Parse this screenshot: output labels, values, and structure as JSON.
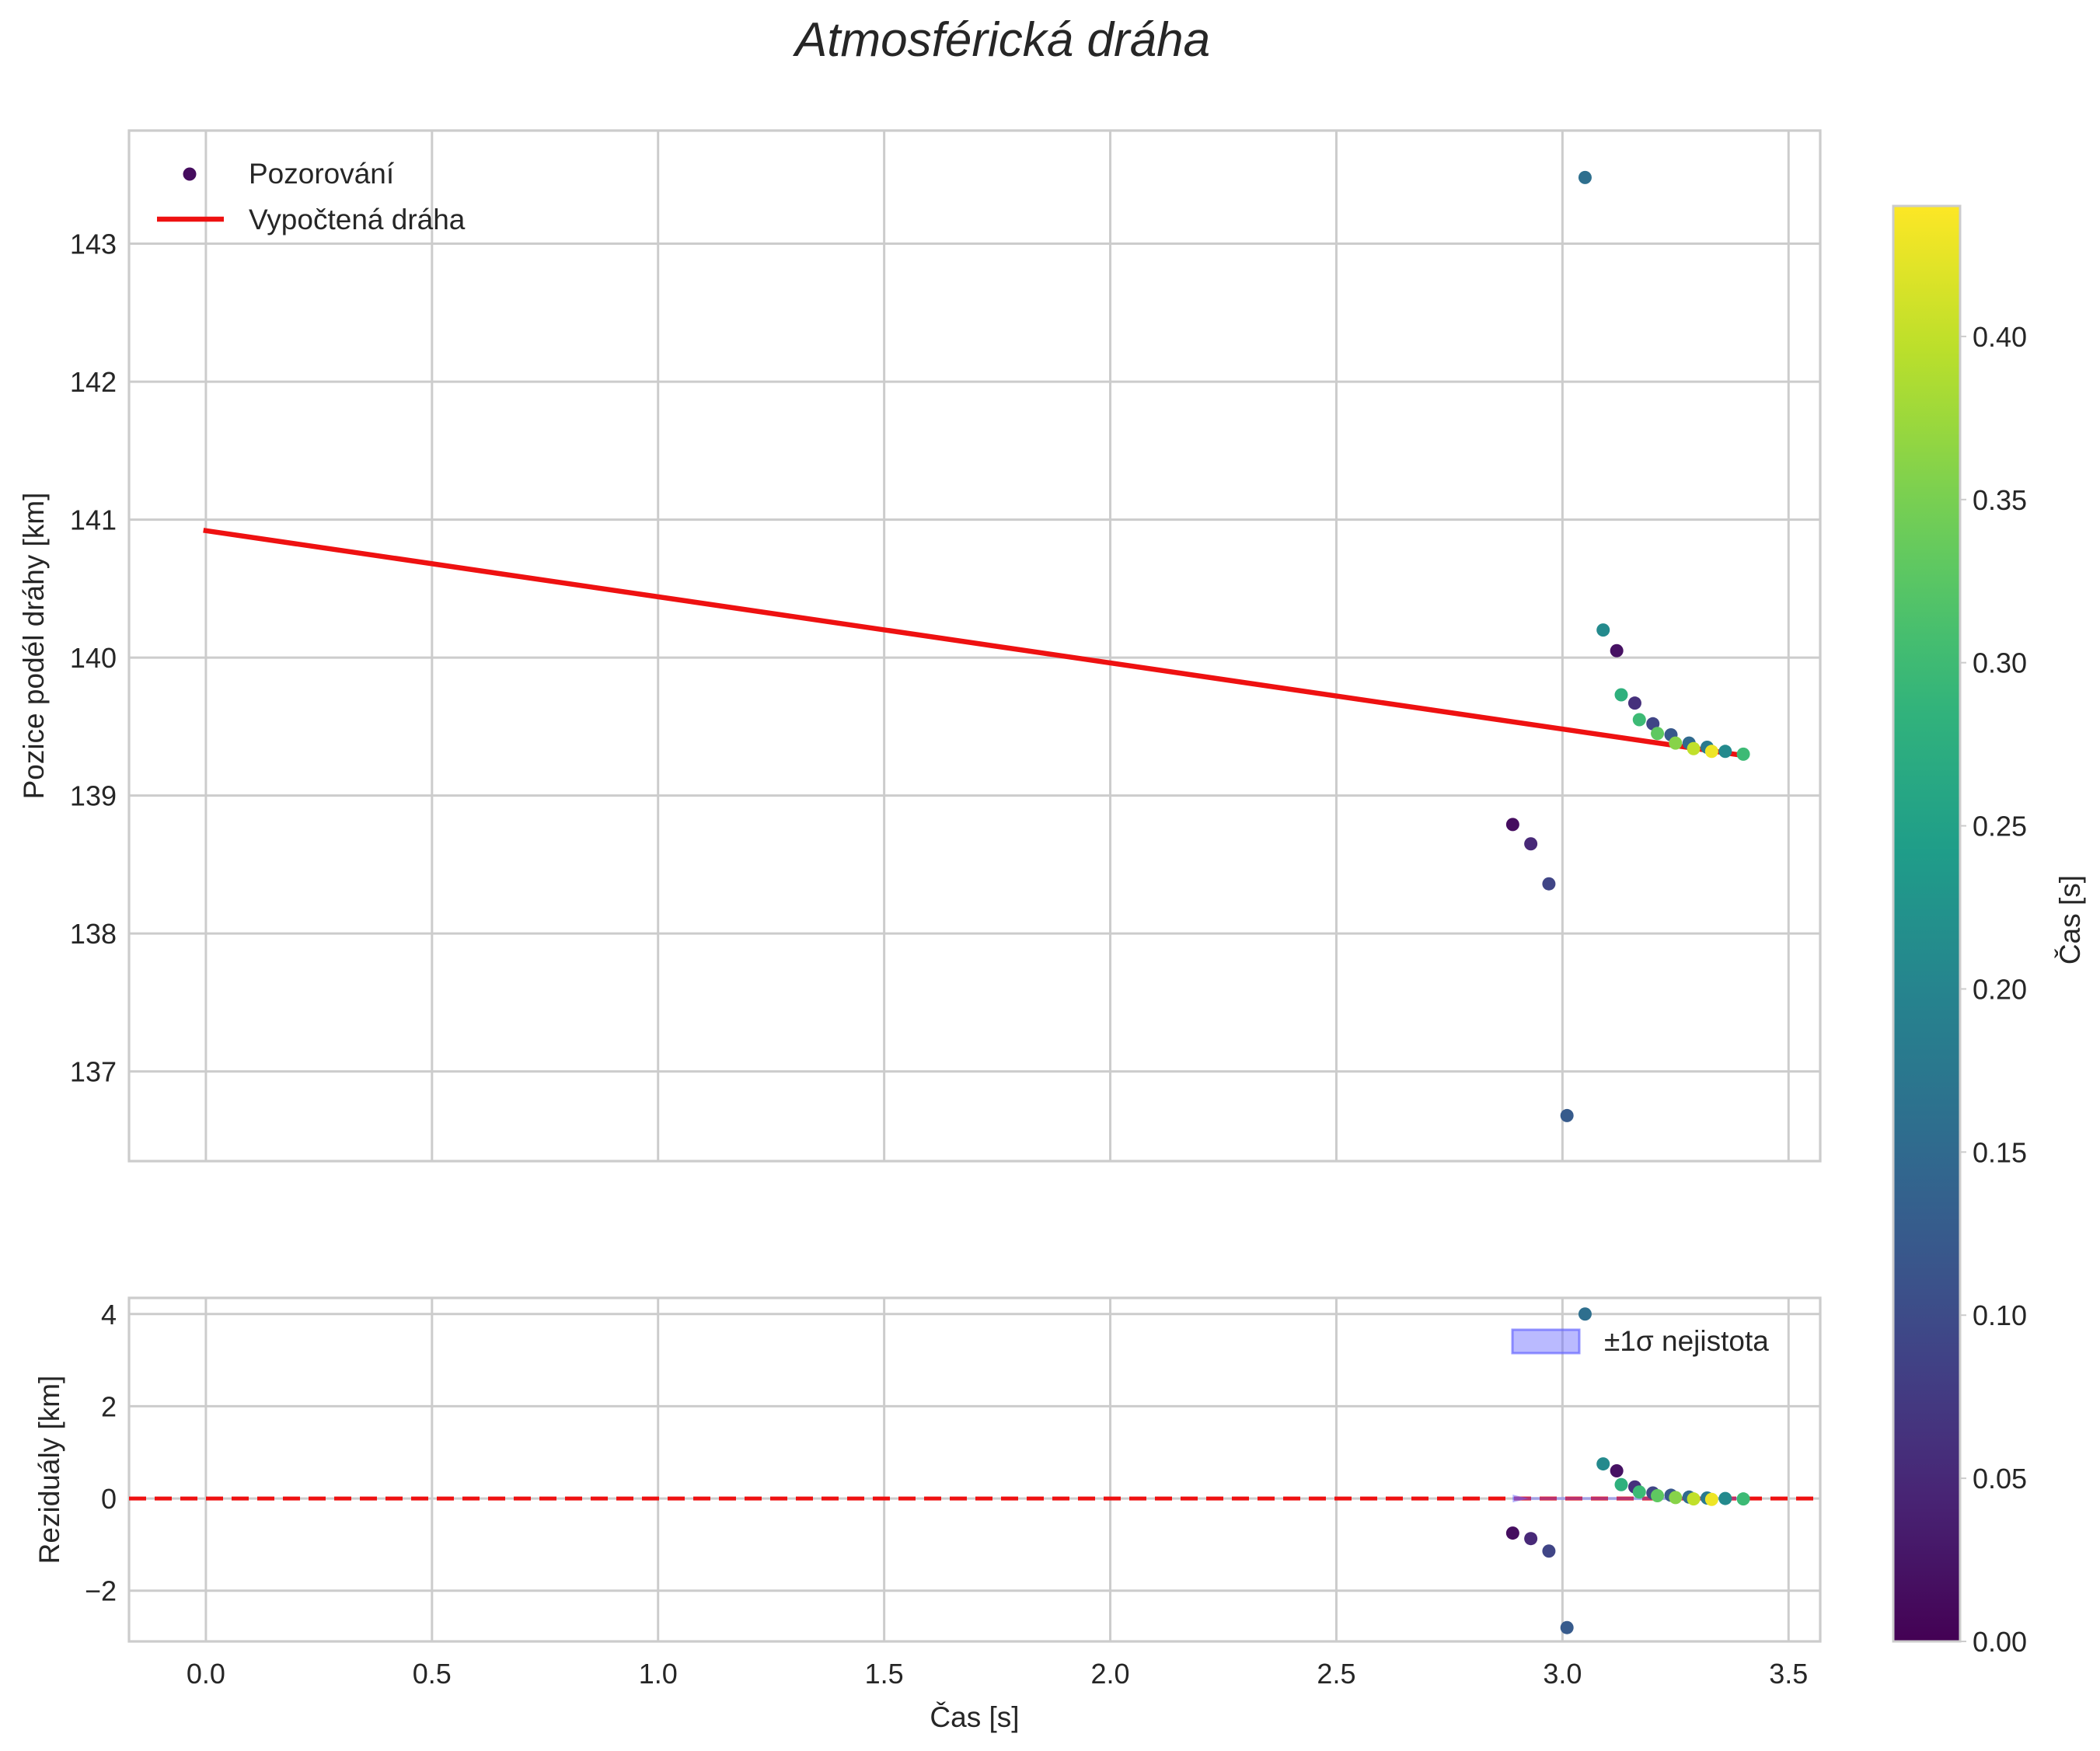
{
  "chart_data": [
    {
      "type": "scatter",
      "title": "Atmosférická dráha",
      "xlabel": "",
      "ylabel": "Pozice podél dráhy [km]",
      "xlim": [
        -0.17,
        3.57
      ],
      "ylim": [
        136.35,
        143.82
      ],
      "x_ticks": [
        0.0,
        0.5,
        1.0,
        1.5,
        2.0,
        2.5,
        3.0,
        3.5
      ],
      "y_ticks": [
        137,
        138,
        139,
        140,
        141,
        142,
        143
      ],
      "y_tick_labels": [
        "137",
        "138",
        "139",
        "140",
        "141",
        "142",
        "143"
      ],
      "grid": true,
      "legend": {
        "placement": "top-left",
        "entries": [
          {
            "label": "Pozorování",
            "kind": "marker"
          },
          {
            "label": "Vypočtená dráha",
            "kind": "line",
            "color": "#ee1111"
          }
        ]
      },
      "series": [
        {
          "name": "Pozorování",
          "kind": "scatter",
          "colormap": "viridis",
          "points": [
            {
              "x": 2.89,
              "y": 138.79,
              "c": 0.015
            },
            {
              "x": 2.93,
              "y": 138.65,
              "c": 0.05
            },
            {
              "x": 2.97,
              "y": 138.36,
              "c": 0.09
            },
            {
              "x": 3.01,
              "y": 136.68,
              "c": 0.125
            },
            {
              "x": 3.05,
              "y": 143.48,
              "c": 0.16
            },
            {
              "x": 3.09,
              "y": 140.2,
              "c": 0.21
            },
            {
              "x": 3.12,
              "y": 140.05,
              "c": 0.02
            },
            {
              "x": 3.13,
              "y": 139.73,
              "c": 0.28
            },
            {
              "x": 3.16,
              "y": 139.67,
              "c": 0.06
            },
            {
              "x": 3.17,
              "y": 139.55,
              "c": 0.3
            },
            {
              "x": 3.2,
              "y": 139.52,
              "c": 0.09
            },
            {
              "x": 3.21,
              "y": 139.45,
              "c": 0.33
            },
            {
              "x": 3.24,
              "y": 139.44,
              "c": 0.12
            },
            {
              "x": 3.25,
              "y": 139.38,
              "c": 0.36
            },
            {
              "x": 3.28,
              "y": 139.38,
              "c": 0.15
            },
            {
              "x": 3.29,
              "y": 139.34,
              "c": 0.4
            },
            {
              "x": 3.32,
              "y": 139.35,
              "c": 0.18
            },
            {
              "x": 3.33,
              "y": 139.32,
              "c": 0.43
            },
            {
              "x": 3.36,
              "y": 139.32,
              "c": 0.21
            },
            {
              "x": 3.4,
              "y": 139.3,
              "c": 0.3
            }
          ]
        },
        {
          "name": "Vypočtená dráha",
          "kind": "line",
          "color": "#ee1111",
          "x": [
            0.0,
            3.4
          ],
          "y": [
            140.92,
            139.29
          ]
        }
      ]
    },
    {
      "type": "scatter",
      "title": "",
      "xlabel": "Čas [s]",
      "ylabel": "Reziduály [km]",
      "xlim": [
        -0.17,
        3.57
      ],
      "ylim": [
        -3.1,
        4.35
      ],
      "x_ticks": [
        0.0,
        0.5,
        1.0,
        1.5,
        2.0,
        2.5,
        3.0,
        3.5
      ],
      "x_tick_labels": [
        "0.0",
        "0.5",
        "1.0",
        "1.5",
        "2.0",
        "2.5",
        "3.0",
        "3.5"
      ],
      "y_ticks": [
        -2,
        0,
        2,
        4
      ],
      "y_tick_labels": [
        "−2",
        "0",
        "2",
        "4"
      ],
      "grid": true,
      "legend": {
        "placement": "top-right",
        "entries": [
          {
            "label": "±1σ nejistota",
            "kind": "band",
            "color": "#6666ff"
          }
        ]
      },
      "reference_line": {
        "y": 0,
        "color": "#ee1111",
        "style": "dashed"
      },
      "uncertainty_band": {
        "x": [
          2.89,
          3.4
        ],
        "low": [
          0.0,
          0.0
        ],
        "high": [
          0.0,
          0.0
        ],
        "color": "#6666ff"
      },
      "series": [
        {
          "name": "Reziduály",
          "kind": "scatter",
          "colormap": "viridis",
          "points": [
            {
              "x": 2.89,
              "y": -0.75,
              "c": 0.015
            },
            {
              "x": 2.93,
              "y": -0.87,
              "c": 0.05
            },
            {
              "x": 2.97,
              "y": -1.14,
              "c": 0.09
            },
            {
              "x": 3.01,
              "y": -2.8,
              "c": 0.125
            },
            {
              "x": 3.05,
              "y": 4.0,
              "c": 0.16
            },
            {
              "x": 3.09,
              "y": 0.75,
              "c": 0.21
            },
            {
              "x": 3.12,
              "y": 0.6,
              "c": 0.02
            },
            {
              "x": 3.13,
              "y": 0.3,
              "c": 0.28
            },
            {
              "x": 3.16,
              "y": 0.25,
              "c": 0.06
            },
            {
              "x": 3.17,
              "y": 0.14,
              "c": 0.3
            },
            {
              "x": 3.2,
              "y": 0.12,
              "c": 0.09
            },
            {
              "x": 3.21,
              "y": 0.06,
              "c": 0.33
            },
            {
              "x": 3.24,
              "y": 0.07,
              "c": 0.12
            },
            {
              "x": 3.25,
              "y": 0.02,
              "c": 0.36
            },
            {
              "x": 3.28,
              "y": 0.03,
              "c": 0.15
            },
            {
              "x": 3.29,
              "y": -0.01,
              "c": 0.4
            },
            {
              "x": 3.32,
              "y": 0.01,
              "c": 0.18
            },
            {
              "x": 3.33,
              "y": -0.02,
              "c": 0.43
            },
            {
              "x": 3.36,
              "y": 0.0,
              "c": 0.21
            },
            {
              "x": 3.4,
              "y": -0.01,
              "c": 0.3
            }
          ]
        }
      ]
    },
    {
      "type": "colorbar",
      "label": "Čas [s]",
      "colormap": "viridis",
      "range": [
        0.0,
        0.44
      ],
      "ticks": [
        0.0,
        0.05,
        0.1,
        0.15,
        0.2,
        0.25,
        0.3,
        0.35,
        0.4
      ],
      "tick_labels": [
        "0.00",
        "0.05",
        "0.10",
        "0.15",
        "0.20",
        "0.25",
        "0.30",
        "0.35",
        "0.40"
      ]
    }
  ]
}
